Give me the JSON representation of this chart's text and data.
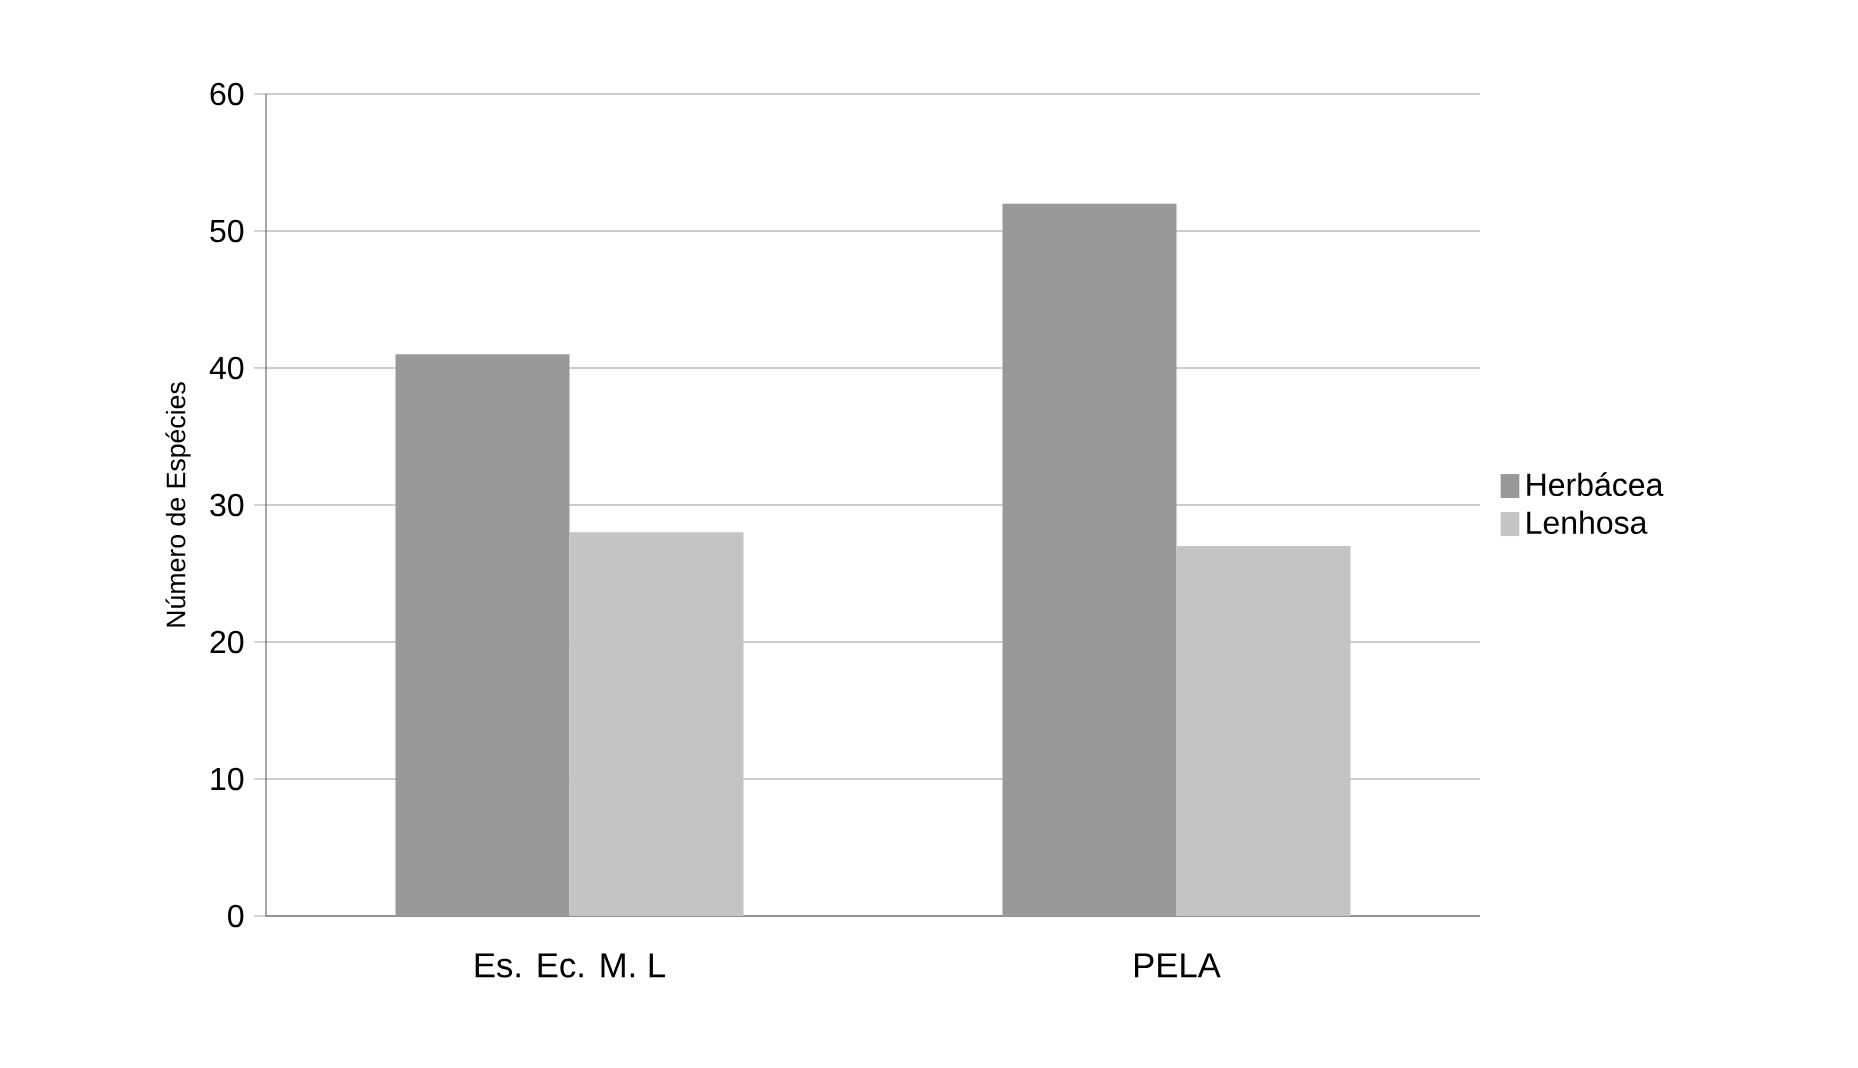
{
  "chart_data": {
    "type": "bar",
    "ylabel": "Número de Espécies",
    "categories": [
      "Es. Ec. M. L",
      "PELA"
    ],
    "series": [
      {
        "name": "Herbácea",
        "color": "#999999",
        "values": [
          41,
          52
        ]
      },
      {
        "name": "Lenhosa",
        "color": "#c4c4c4",
        "values": [
          28,
          27
        ]
      }
    ],
    "ylim": [
      0,
      60
    ],
    "yticks": [
      0,
      10,
      20,
      30,
      40,
      50,
      60
    ],
    "grid": "y",
    "legend": "right"
  }
}
